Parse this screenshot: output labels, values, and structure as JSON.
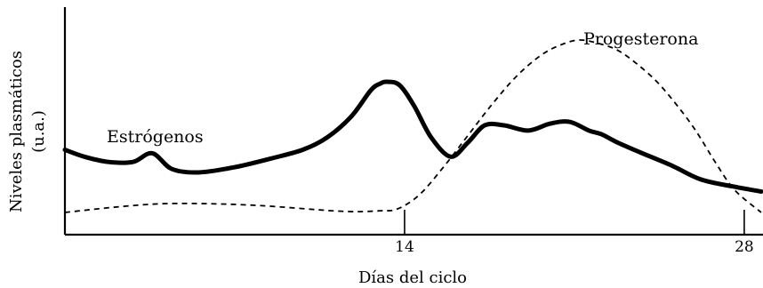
{
  "chart_data": {
    "type": "line",
    "title": "",
    "xlabel": "Días del ciclo",
    "ylabel_lines": [
      "Niveles plasmáticos",
      "(u.a.)"
    ],
    "xlim": [
      0,
      28.7
    ],
    "ylim": [
      0,
      100
    ],
    "x_ticks": [
      14,
      28
    ],
    "x_tick_labels": [
      "14",
      "28"
    ],
    "y_tick_labels": [],
    "grid": false,
    "legend": "none",
    "series": [
      {
        "name": "Estrógenos",
        "line_style": "solid",
        "color": "#000000",
        "x": [
          0,
          0.8,
          1.8,
          2.8,
          3.6,
          4.4,
          5.5,
          7,
          8.5,
          9.8,
          10.8,
          11.8,
          12.6,
          13,
          13.3,
          13.8,
          14.4,
          15.1,
          15.9,
          16.6,
          17.3,
          18.1,
          19.1,
          20,
          20.8,
          21.6,
          22.1,
          22.8,
          23.8,
          25,
          26.2,
          27.5,
          28.7
        ],
        "values": [
          37,
          33,
          30,
          30,
          35,
          26,
          24,
          27,
          32,
          37,
          44,
          56,
          71,
          75,
          76,
          74,
          62,
          44,
          33,
          41,
          51,
          51,
          48,
          52,
          53,
          48,
          46,
          41,
          35,
          28,
          20,
          16,
          13
        ]
      },
      {
        "name": "Progesterona",
        "line_style": "dashed",
        "color": "#000000",
        "x": [
          0,
          2,
          4,
          6,
          8,
          10,
          11,
          12,
          13,
          13.7,
          14.6,
          15.6,
          16.6,
          17.6,
          18.6,
          19.6,
          20.4,
          21.2,
          22,
          22.8,
          23.6,
          24.4,
          25.2,
          26,
          26.8,
          27.6,
          28.7
        ],
        "values": [
          1,
          4,
          6,
          6,
          5,
          3,
          2,
          1.5,
          2,
          3,
          11,
          27,
          45,
          63,
          79,
          91,
          97,
          100,
          98,
          94,
          86,
          76,
          63,
          48,
          30,
          14,
          1
        ]
      }
    ],
    "annotations": [
      "Estrógenos",
      "Progesterona"
    ]
  }
}
